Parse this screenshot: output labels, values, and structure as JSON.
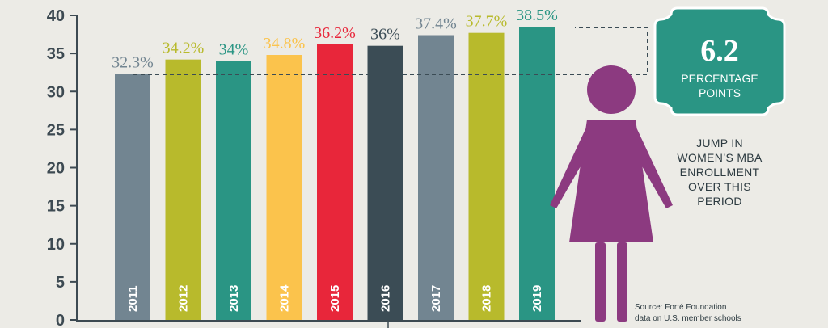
{
  "chart_data": {
    "type": "bar",
    "title": "",
    "xlabel": "",
    "ylabel": "",
    "ylim": [
      0,
      40
    ],
    "yticks": [
      0,
      5,
      10,
      15,
      20,
      25,
      30,
      35,
      40
    ],
    "grid": false,
    "categories": [
      "2011",
      "2012",
      "2013",
      "2014",
      "2015",
      "2016",
      "2017",
      "2018",
      "2019"
    ],
    "values": [
      32.3,
      34.2,
      34,
      34.8,
      36.2,
      36,
      37.4,
      37.7,
      38.5
    ],
    "value_labels": [
      "32.3%",
      "34.2%",
      "34%",
      "34.8%",
      "36.2%",
      "36%",
      "37.4%",
      "37.7%",
      "38.5%"
    ],
    "bar_colors": [
      "#728591",
      "#b8ba2c",
      "#2a9584",
      "#fbc34c",
      "#e8263a",
      "#3b4c55",
      "#728591",
      "#b8ba2c",
      "#2a9584"
    ]
  },
  "callout": {
    "number": "6.2",
    "line1": "PERCENTAGE",
    "line2": "POINTS",
    "caption": [
      "JUMP IN",
      "WOMEN’S MBA",
      "ENROLLMENT",
      "OVER THIS",
      "PERIOD"
    ],
    "badge_color": "#2a9584",
    "figure_color": "#8c3a80"
  },
  "source": {
    "line1": "Source: Forté Foundation",
    "line2": "data on U.S. member schools"
  },
  "axis_color": "#3d4a52",
  "dash_color": "#3b4c55"
}
